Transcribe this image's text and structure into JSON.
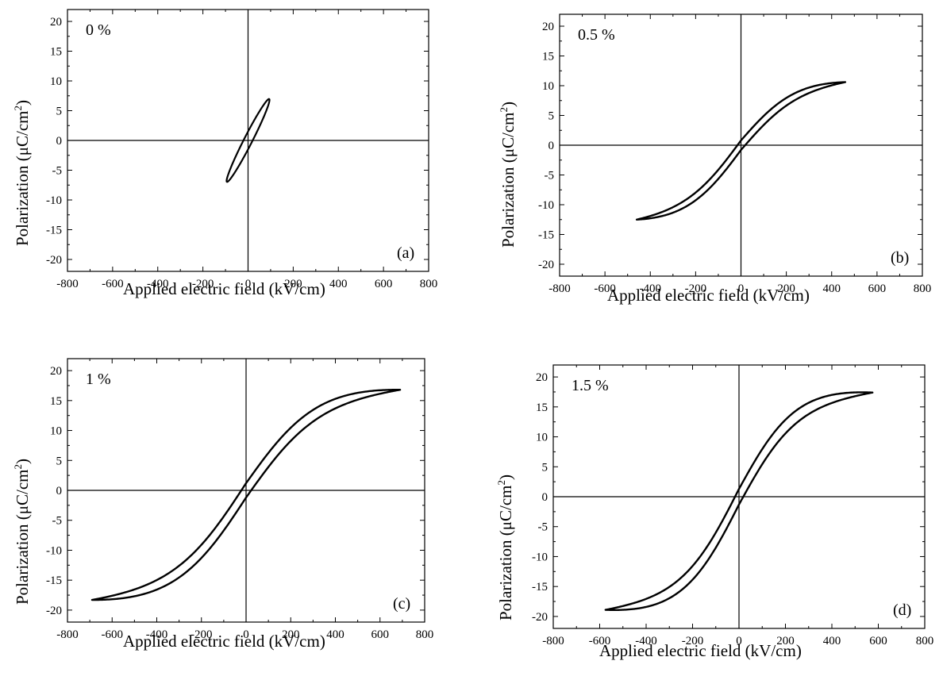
{
  "chart_data": [
    {
      "type": "line",
      "xlabel": "Applied electric field (kV/cm)",
      "ylabel": "Polarization (μC/cm",
      "ylabel_sup": "2",
      "ylabel_close": ")",
      "xlim": [
        -800,
        800
      ],
      "ylim": [
        -22,
        22
      ],
      "xticks": [
        "-800",
        "-600",
        "-400",
        "-200",
        "0",
        "200",
        "400",
        "600",
        "800"
      ],
      "yticks": [
        "20",
        "15",
        "10",
        "5",
        "0",
        "-5",
        "-10",
        "-15",
        "-20"
      ],
      "annotation": "0 %",
      "panel_label": "(a)",
      "loop": {
        "emax": 95,
        "pmax": 6.8,
        "pr": 1.5,
        "slope": 1.0
      }
    },
    {
      "type": "line",
      "xlabel": "Applied electric field (kV/cm)",
      "ylabel": "Polarization (μC/cm",
      "ylabel_sup": "2",
      "ylabel_close": ")",
      "xlim": [
        -800,
        800
      ],
      "ylim": [
        -22,
        22
      ],
      "xticks": [
        "-800",
        "-600",
        "-400",
        "-200",
        "0",
        "200",
        "400",
        "600",
        "800"
      ],
      "yticks": [
        "20",
        "15",
        "10",
        "5",
        "0",
        "-5",
        "-10",
        "-15",
        "-20"
      ],
      "annotation": "0.5 %",
      "panel_label": "(b)",
      "loop": {
        "emax": 460,
        "pmax": 10.6,
        "pmin": -12.5,
        "pr": 0.3,
        "width": 0.8,
        "slope": 0.7
      }
    },
    {
      "type": "line",
      "xlabel": "Applied electric field (kV/cm)",
      "ylabel": "Polarization (μC/cm",
      "ylabel_sup": "2",
      "ylabel_close": ")",
      "xlim": [
        -800,
        800
      ],
      "ylim": [
        -22,
        22
      ],
      "xticks": [
        "-800",
        "-600",
        "-400",
        "-200",
        "0",
        "200",
        "400",
        "600",
        "800"
      ],
      "yticks": [
        "20",
        "15",
        "10",
        "5",
        "0",
        "-5",
        "-10",
        "-15",
        "-20"
      ],
      "annotation": "1 %",
      "panel_label": "(c)",
      "loop": {
        "emax": 690,
        "pmax": 16.8,
        "pmin": -18.3,
        "pr": 1.5,
        "width": 1.2,
        "slope": 0.6
      }
    },
    {
      "type": "line",
      "xlabel": "Applied electric field (kV/cm)",
      "ylabel": "Polarization (μC/cm",
      "ylabel_sup": "2",
      "ylabel_close": ")",
      "xlim": [
        -800,
        800
      ],
      "ylim": [
        -22,
        22
      ],
      "xticks": [
        "-800",
        "-600",
        "-400",
        "-200",
        "0",
        "200",
        "400",
        "600",
        "800"
      ],
      "yticks": [
        "20",
        "15",
        "10",
        "5",
        "0",
        "-5",
        "-10",
        "-15",
        "-20"
      ],
      "annotation": "1.5 %",
      "panel_label": "(d)",
      "loop": {
        "emax": 575,
        "pmax": 17.4,
        "pmin": -18.9,
        "pr": 1.5,
        "width": 1.3,
        "slope": 0.55
      }
    }
  ]
}
